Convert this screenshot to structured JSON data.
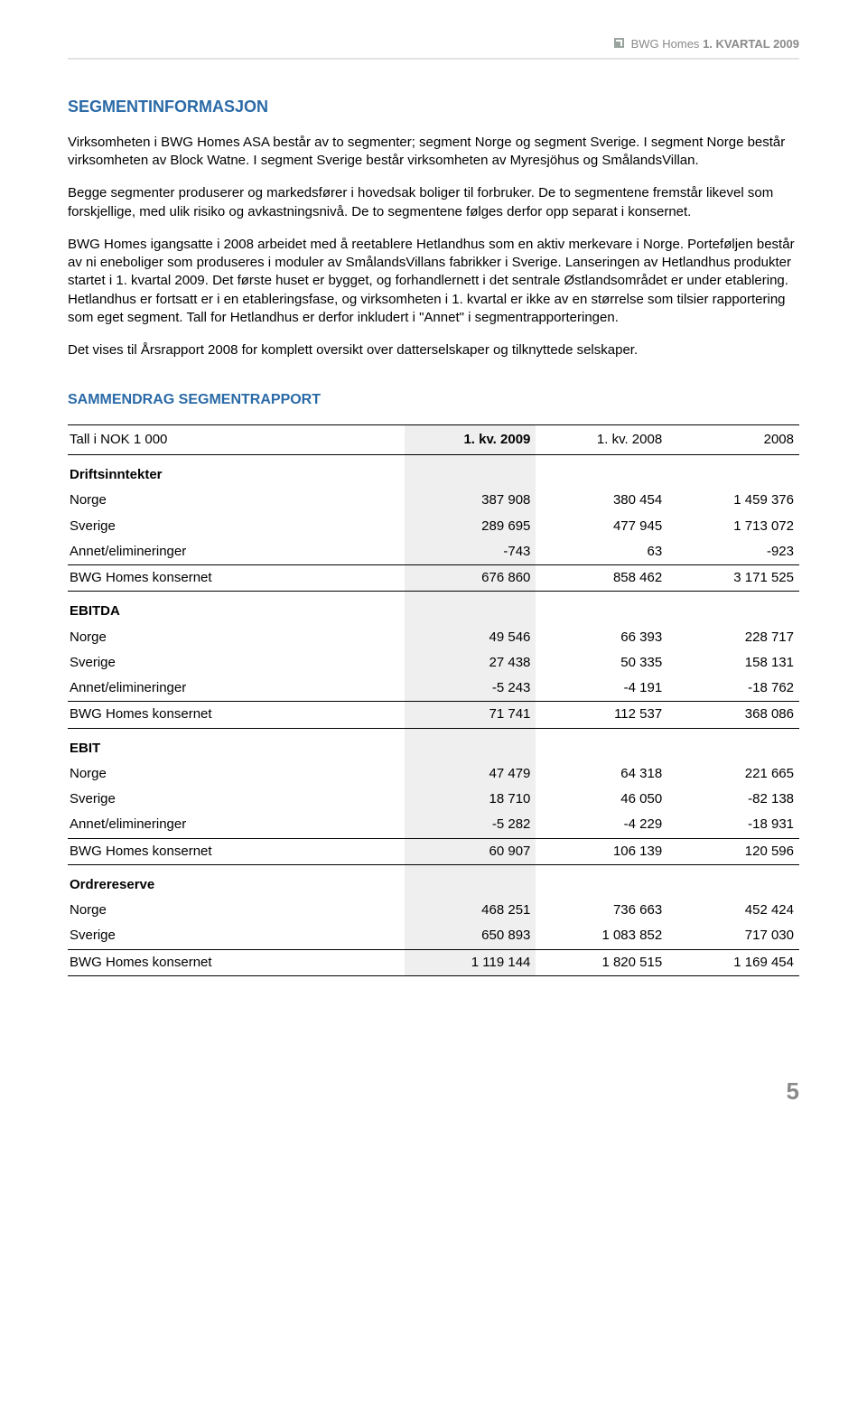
{
  "header": {
    "company": "BWG Homes",
    "period": "1. KVARTAL 2009"
  },
  "title": "SEGMENTINFORMASJON",
  "paragraphs": [
    "Virksomheten i BWG Homes ASA består av to segmenter; segment Norge og segment Sverige. I segment Norge består virksomheten av Block Watne. I segment Sverige består virksomheten av Myresjöhus og SmålandsVillan.",
    "Begge segmenter produserer og markedsfører i hovedsak boliger til forbruker. De to segmentene fremstår likevel som forskjellige, med ulik risiko og avkastningsnivå. De to segmentene følges derfor opp separat i konsernet.",
    "BWG Homes igangsatte i 2008 arbeidet med å reetablere Hetlandhus som en aktiv merkevare i Norge. Porteføljen består av ni eneboliger som produseres i moduler av SmålandsVillans fabrikker i Sverige. Lanseringen av Hetlandhus produkter startet i 1. kvartal 2009. Det første huset er bygget, og forhandlernett i det sentrale Østlandsområdet er under etablering. Hetlandhus er fortsatt er i en etableringsfase, og virksomheten i 1. kvartal er ikke av en størrelse som tilsier rapportering som eget segment. Tall for Hetlandhus er derfor inkludert i \"Annet\" i segmentrapporteringen.",
    "Det vises til Årsrapport 2008 for komplett oversikt over datterselskaper og tilknyttede selskaper."
  ],
  "subsection": "SAMMENDRAG SEGMENTRAPPORT",
  "table": {
    "unit_label": "Tall i NOK 1 000",
    "columns": [
      "1. kv. 2009",
      "1. kv. 2008",
      "2008"
    ],
    "highlight_col_index": 0,
    "sections": [
      {
        "name": "Driftsinntekter",
        "rows": [
          {
            "label": "Norge",
            "values": [
              "387 908",
              "380 454",
              "1 459 376"
            ]
          },
          {
            "label": "Sverige",
            "values": [
              "289 695",
              "477 945",
              "1 713 072"
            ]
          },
          {
            "label": "Annet/elimineringer",
            "values": [
              "-743",
              "63",
              "-923"
            ],
            "underline": true
          }
        ],
        "total": {
          "label": "BWG Homes konsernet",
          "values": [
            "676 860",
            "858 462",
            "3 171 525"
          ]
        }
      },
      {
        "name": "EBITDA",
        "rows": [
          {
            "label": "Norge",
            "values": [
              "49 546",
              "66 393",
              "228 717"
            ]
          },
          {
            "label": "Sverige",
            "values": [
              "27 438",
              "50 335",
              "158 131"
            ]
          },
          {
            "label": "Annet/elimineringer",
            "values": [
              "-5 243",
              "-4 191",
              "-18 762"
            ],
            "underline": true
          }
        ],
        "total": {
          "label": "BWG Homes konsernet",
          "values": [
            "71 741",
            "112 537",
            "368 086"
          ]
        }
      },
      {
        "name": "EBIT",
        "rows": [
          {
            "label": "Norge",
            "values": [
              "47 479",
              "64 318",
              "221 665"
            ]
          },
          {
            "label": "Sverige",
            "values": [
              "18 710",
              "46 050",
              "-82 138"
            ]
          },
          {
            "label": "Annet/elimineringer",
            "values": [
              "-5 282",
              "-4 229",
              "-18 931"
            ],
            "underline": true
          }
        ],
        "total": {
          "label": "BWG Homes konsernet",
          "values": [
            "60 907",
            "106 139",
            "120 596"
          ]
        }
      },
      {
        "name": "Ordrereserve",
        "rows": [
          {
            "label": "Norge",
            "values": [
              "468 251",
              "736 663",
              "452 424"
            ]
          },
          {
            "label": "Sverige",
            "values": [
              "650 893",
              "1 083 852",
              "717 030"
            ],
            "underline": true
          }
        ],
        "total": {
          "label": "BWG Homes konsernet",
          "values": [
            "1 119 144",
            "1 820 515",
            "1 169 454"
          ]
        }
      }
    ]
  },
  "page_number": "5",
  "colors": {
    "heading": "#2a6aa7",
    "header_text": "#8a8a8a",
    "highlight_bg": "#efefef",
    "separator": "#e3e3e3",
    "text": "#000000",
    "background": "#ffffff"
  }
}
